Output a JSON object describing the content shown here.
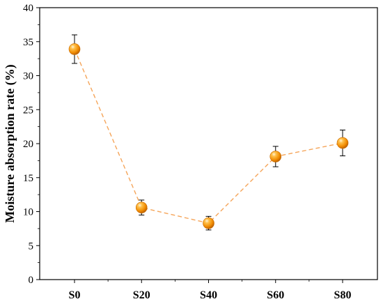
{
  "chart_data": {
    "type": "line",
    "title": "",
    "xlabel": "",
    "ylabel": "Moisture absorption rate (%)",
    "categories": [
      "S0",
      "S20",
      "S40",
      "S60",
      "S80"
    ],
    "series": [
      {
        "values": [
          33.9,
          10.6,
          8.3,
          18.1,
          20.1
        ],
        "errors": [
          2.1,
          1.1,
          1.0,
          1.5,
          1.9
        ],
        "color": "#F39C12",
        "line_color": "#F5A55A",
        "line_style": "dashed",
        "marker": "sphere"
      }
    ],
    "ylim": [
      0,
      40
    ],
    "yticks": [
      0,
      5,
      10,
      15,
      20,
      25,
      30,
      35,
      40
    ],
    "grid": false,
    "legend": "none"
  }
}
